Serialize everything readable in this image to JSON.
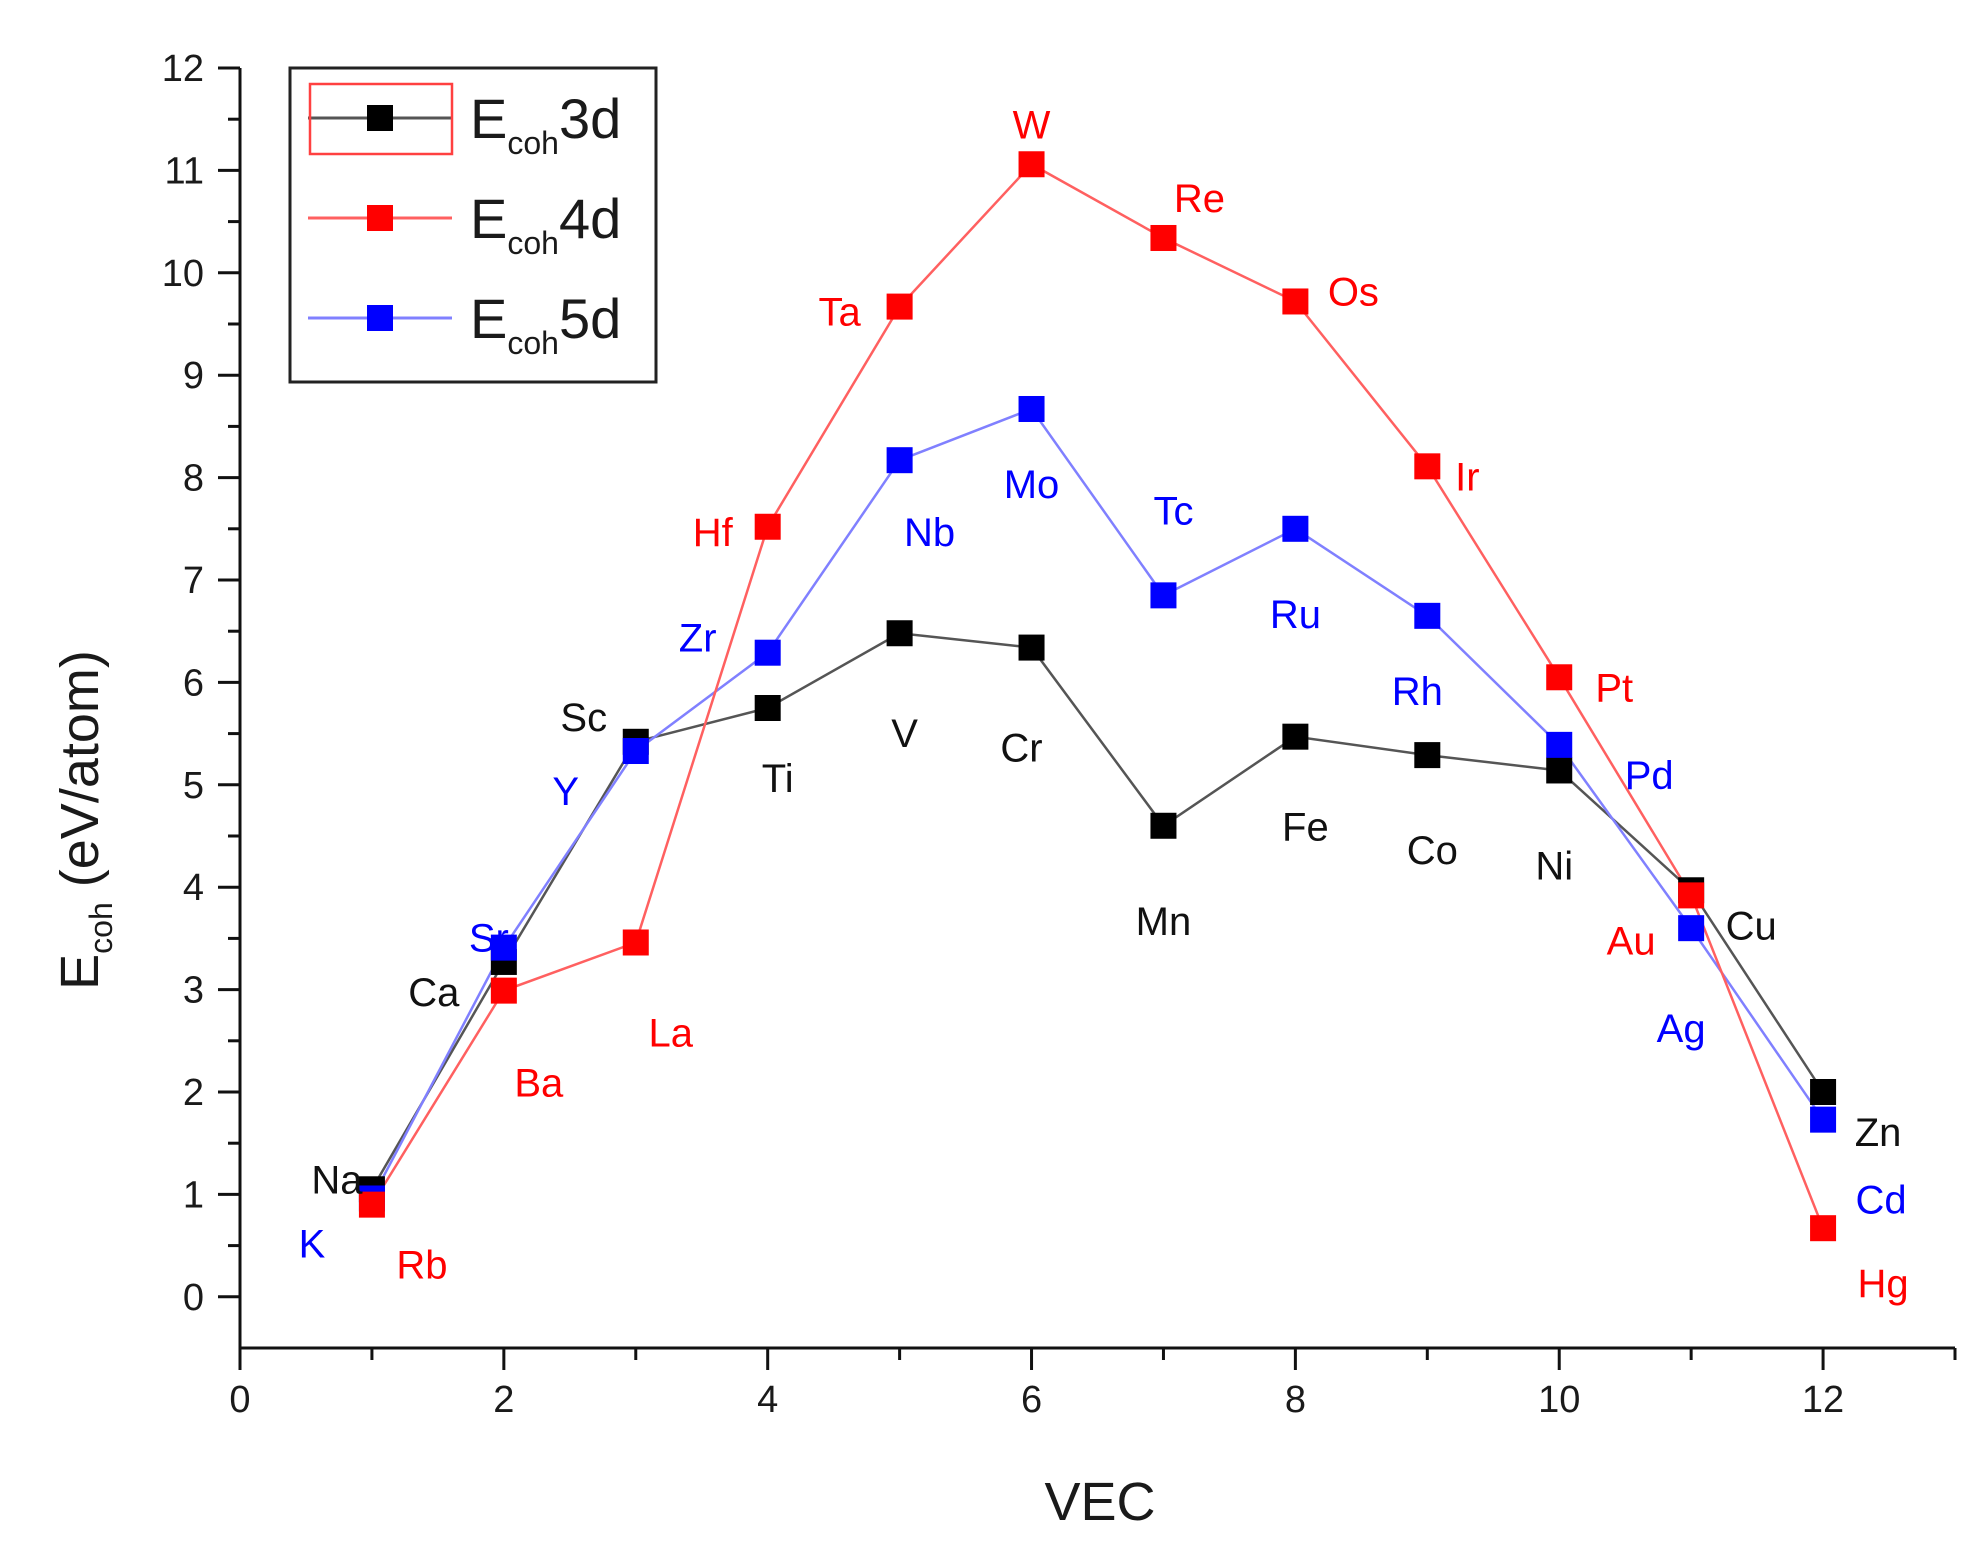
{
  "chart_data": {
    "type": "line",
    "title": "",
    "xlabel": "VEC",
    "ylabel": {
      "main": "E",
      "sub": "coh",
      "rest": " (eV/atom)"
    },
    "xlim": [
      0,
      13
    ],
    "ylim": [
      -0.5,
      12
    ],
    "x_ticks": [
      0,
      2,
      4,
      6,
      8,
      10,
      12
    ],
    "y_ticks": [
      0,
      1,
      2,
      3,
      4,
      5,
      6,
      7,
      8,
      9,
      10,
      11,
      12
    ],
    "legend_position": "top-left",
    "series": [
      {
        "key": "3d",
        "legend": {
          "main": "E",
          "sub": "coh",
          "tail": "3d"
        },
        "color": "#000000",
        "line_color": "#555555",
        "x": [
          1,
          2,
          3,
          4,
          5,
          6,
          7,
          8,
          9,
          10,
          11,
          12
        ],
        "values": [
          1.05,
          3.27,
          5.42,
          5.75,
          6.48,
          6.34,
          4.6,
          5.47,
          5.29,
          5.14,
          3.97,
          2.0
        ],
        "elements": [
          "Na",
          "Ca",
          "Sc",
          "Ti",
          "V",
          "Cr",
          "Mn",
          "Fe",
          "Co",
          "Ni",
          "Cu",
          "Zn"
        ]
      },
      {
        "key": "4d",
        "legend": {
          "main": "E",
          "sub": "coh",
          "tail": "4d"
        },
        "color": "#ff0000",
        "line_color": "#ff6060",
        "x": [
          1,
          2,
          3,
          4,
          5,
          6,
          7,
          8,
          9,
          10,
          11,
          12
        ],
        "values": [
          0.9,
          2.99,
          3.46,
          7.52,
          9.67,
          11.06,
          10.34,
          9.72,
          8.11,
          6.05,
          3.92,
          0.67
        ],
        "elements": [
          "Rb",
          "Ba",
          "La",
          "Hf",
          "Ta",
          "W",
          "Re",
          "Os",
          "Ir",
          "Pt",
          "Au",
          "Hg"
        ]
      },
      {
        "key": "5d",
        "legend": {
          "main": "E",
          "sub": "coh",
          "tail": "5d"
        },
        "color": "#0000ff",
        "line_color": "#8080ff",
        "x": [
          1,
          2,
          3,
          4,
          5,
          6,
          7,
          8,
          9,
          10,
          11,
          12
        ],
        "values": [
          0.96,
          3.41,
          5.33,
          6.29,
          8.17,
          8.67,
          6.85,
          7.5,
          6.65,
          5.39,
          3.6,
          1.73
        ],
        "elements": [
          "K",
          "Sr",
          "Y",
          "Zr",
          "Nb",
          "Mo",
          "Tc",
          "Ru",
          "Rh",
          "Pd",
          "Ag",
          "Cd"
        ]
      }
    ]
  }
}
